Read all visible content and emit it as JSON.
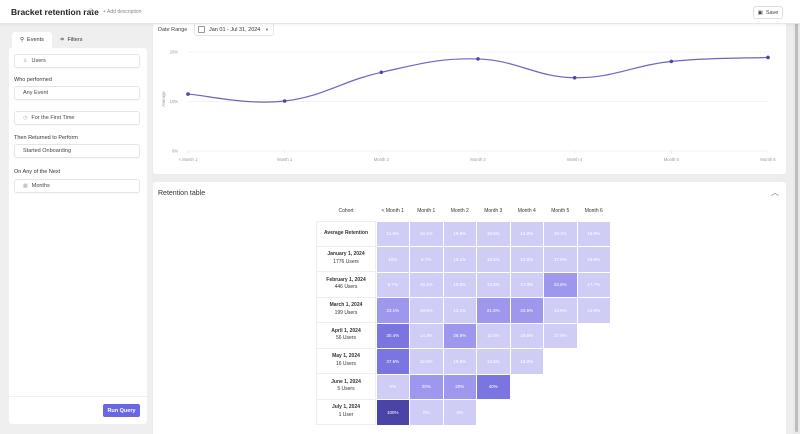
{
  "header": {
    "title": "Bracket retention rate",
    "add_description": "+ Add description",
    "save_label": "Save"
  },
  "sidebar": {
    "tabs": [
      {
        "label": "Events",
        "icon": "events-icon",
        "active": true
      },
      {
        "label": "Filters",
        "icon": "filters-icon",
        "active": false
      }
    ],
    "entity": "Users",
    "who_performed_label": "Who performed",
    "who_performed_value": "Any Event",
    "first_time": "For the First Time",
    "returned_label": "Then Returned to Perform",
    "returned_value": "Started Onboarding",
    "next_label": "On Any of the Next",
    "next_value": "Months",
    "run_query": "Run Query"
  },
  "chart": {
    "date_range_label": "Date Range",
    "date_range_value": "Jan 01 - Jul 31, 2024"
  },
  "chart_data": {
    "type": "line",
    "title": "",
    "xlabel": "",
    "ylabel": "Average",
    "categories": [
      "< Month 1",
      "Month 1",
      "Month 2",
      "Month 3",
      "Month 4",
      "Month 5",
      "Month 6"
    ],
    "series": [
      {
        "name": "Average Retention",
        "values": [
          11.5,
          10.1,
          15.9,
          18.6,
          14.8,
          18.1,
          18.9
        ],
        "color": "#4b47a8"
      }
    ],
    "yticks": [
      "0%",
      "10%",
      "20%"
    ],
    "ylim": [
      0,
      20
    ],
    "grid": true,
    "smooth": true
  },
  "table": {
    "title": "Retention table",
    "cohort_header": "Cohort",
    "columns": [
      "< Month 1",
      "Month 1",
      "Month 2",
      "Month 3",
      "Month 4",
      "Month 5",
      "Month 6"
    ],
    "rows": [
      {
        "name": "Average Retention",
        "users": "",
        "values": [
          "11.5%",
          "10.1%",
          "15.9%",
          "18.6%",
          "14.8%",
          "18.1%",
          "18.9%"
        ],
        "raw": [
          11.5,
          10.1,
          15.9,
          18.6,
          14.8,
          18.1,
          18.9
        ]
      },
      {
        "name": "January 1, 2024",
        "users": "1776 Users",
        "values": [
          "10%",
          "6.7%",
          "16.1%",
          "19.4%",
          "12.8%",
          "17.5%",
          "19.9%"
        ],
        "raw": [
          10,
          6.7,
          16.1,
          19.4,
          12.8,
          17.5,
          19.9
        ]
      },
      {
        "name": "February 1, 2024",
        "users": "446 Users",
        "values": [
          "8.7%",
          "19.1%",
          "15.5%",
          "14.8%",
          "17.3%",
          "22.6%",
          "17.7%"
        ],
        "raw": [
          8.7,
          19.1,
          15.5,
          14.8,
          17.3,
          22.6,
          17.7
        ]
      },
      {
        "name": "March 1, 2024",
        "users": "199 Users",
        "values": [
          "23.1%",
          "18.6%",
          "12.1%",
          "21.6%",
          "24.6%",
          "13.6%",
          "12.6%"
        ],
        "raw": [
          23.1,
          18.6,
          12.1,
          21.6,
          24.6,
          13.6,
          12.6
        ]
      },
      {
        "name": "April 1, 2024",
        "users": "56 Users",
        "values": [
          "30.4%",
          "14.3%",
          "26.8%",
          "12.5%",
          "19.6%",
          "17.9%"
        ],
        "raw": [
          30.4,
          14.3,
          26.8,
          12.5,
          19.6,
          17.9
        ]
      },
      {
        "name": "May 1, 2024",
        "users": "16 Users",
        "values": [
          "37.5%",
          "12.5%",
          "18.8%",
          "12.5%",
          "18.8%"
        ],
        "raw": [
          37.5,
          12.5,
          18.8,
          12.5,
          18.8
        ]
      },
      {
        "name": "June 1, 2024",
        "users": "5 Users",
        "values": [
          "0%",
          "20%",
          "20%",
          "40%"
        ],
        "raw": [
          0,
          20,
          20,
          40
        ]
      },
      {
        "name": "July 1, 2024",
        "users": "1 User",
        "values": [
          "100%",
          "0%",
          "0%"
        ],
        "raw": [
          100,
          0,
          0
        ]
      }
    ]
  },
  "colors": {
    "accent": "#6a66e4",
    "line": "#4b47a8",
    "cell_light": "#cfcdf6",
    "cell_mid": "#9d98ee",
    "cell_strong": "#7b75e2",
    "cell_dark": "#4a44a6"
  }
}
